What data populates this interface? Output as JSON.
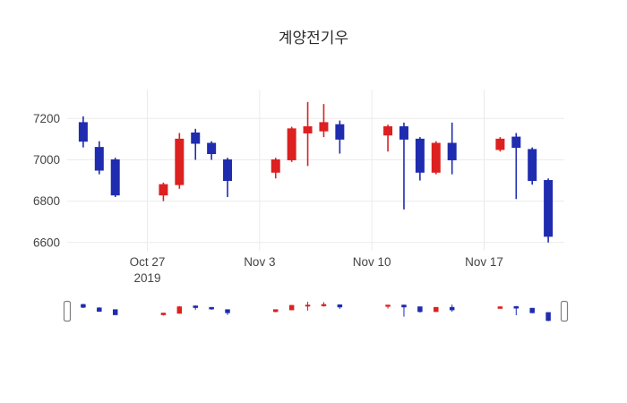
{
  "chart_data": {
    "type": "candlestick",
    "title": "계양전기우",
    "legend_position": "none",
    "grid": true,
    "increasing_color": "#dd2020",
    "decreasing_color": "#1f2cb0",
    "grid_color": "#ebebeb",
    "tick_color": "#444444",
    "background_color": "#ffffff",
    "y_ticks": [
      7200,
      7000,
      6800,
      6600
    ],
    "y_tick_labels": [
      "7200",
      "7000",
      "6800",
      "6600"
    ],
    "x_ticks": [
      {
        "date": "2019-10-27",
        "label": "Oct 27",
        "sublabel": "2019"
      },
      {
        "date": "2019-11-03",
        "label": "Nov 3",
        "sublabel": ""
      },
      {
        "date": "2019-11-10",
        "label": "Nov 10",
        "sublabel": ""
      },
      {
        "date": "2019-11-17",
        "label": "Nov 17",
        "sublabel": ""
      }
    ],
    "x_range": [
      "2019-10-22",
      "2019-11-22"
    ],
    "y_range": [
      6560,
      7340
    ],
    "candles": [
      {
        "date": "2019-10-23",
        "open": 7180,
        "high": 7210,
        "low": 7060,
        "close": 7090
      },
      {
        "date": "2019-10-24",
        "open": 7060,
        "high": 7090,
        "low": 6930,
        "close": 6950
      },
      {
        "date": "2019-10-25",
        "open": 7000,
        "high": 7010,
        "low": 6820,
        "close": 6830
      },
      {
        "date": "2019-10-28",
        "open": 6830,
        "high": 6890,
        "low": 6800,
        "close": 6880
      },
      {
        "date": "2019-10-29",
        "open": 6880,
        "high": 7130,
        "low": 6860,
        "close": 7100
      },
      {
        "date": "2019-10-30",
        "open": 7130,
        "high": 7150,
        "low": 7000,
        "close": 7080
      },
      {
        "date": "2019-10-31",
        "open": 7080,
        "high": 7090,
        "low": 7000,
        "close": 7030
      },
      {
        "date": "2019-11-01",
        "open": 7000,
        "high": 7010,
        "low": 6820,
        "close": 6900
      },
      {
        "date": "2019-11-04",
        "open": 6940,
        "high": 7010,
        "low": 6910,
        "close": 7000
      },
      {
        "date": "2019-11-05",
        "open": 7000,
        "high": 7160,
        "low": 6990,
        "close": 7150
      },
      {
        "date": "2019-11-06",
        "open": 7130,
        "high": 7280,
        "low": 6970,
        "close": 7160
      },
      {
        "date": "2019-11-07",
        "open": 7140,
        "high": 7270,
        "low": 7110,
        "close": 7180
      },
      {
        "date": "2019-11-08",
        "open": 7170,
        "high": 7190,
        "low": 7030,
        "close": 7100
      },
      {
        "date": "2019-11-11",
        "open": 7120,
        "high": 7170,
        "low": 7040,
        "close": 7160
      },
      {
        "date": "2019-11-12",
        "open": 7160,
        "high": 7180,
        "low": 6760,
        "close": 7100
      },
      {
        "date": "2019-11-13",
        "open": 7100,
        "high": 7110,
        "low": 6900,
        "close": 6940
      },
      {
        "date": "2019-11-14",
        "open": 6940,
        "high": 7090,
        "low": 6930,
        "close": 7080
      },
      {
        "date": "2019-11-15",
        "open": 7080,
        "high": 7180,
        "low": 6930,
        "close": 7000
      },
      {
        "date": "2019-11-18",
        "open": 7050,
        "high": 7110,
        "low": 7040,
        "close": 7100
      },
      {
        "date": "2019-11-19",
        "open": 7110,
        "high": 7130,
        "low": 6810,
        "close": 7060
      },
      {
        "date": "2019-11-20",
        "open": 7050,
        "high": 7060,
        "low": 6880,
        "close": 6900
      },
      {
        "date": "2019-11-21",
        "open": 6900,
        "high": 6910,
        "low": 6600,
        "close": 6630
      }
    ]
  }
}
